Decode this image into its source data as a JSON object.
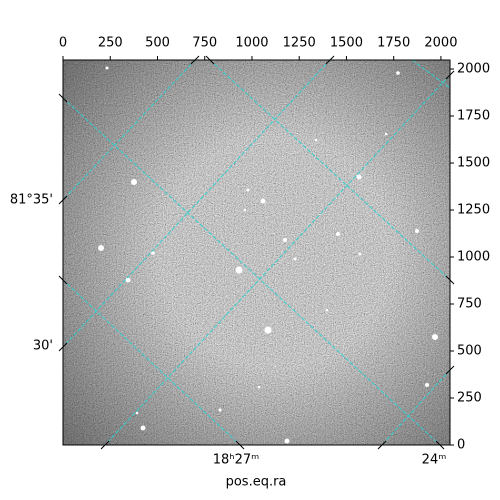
{
  "chart_data": {
    "type": "image",
    "xlabel": "pos.eq.ra",
    "xlim": [
      0,
      2048
    ],
    "xticks": [
      0,
      250,
      500,
      750,
      1000,
      1250,
      1500,
      1750,
      2000
    ],
    "ylim": [
      0,
      2048
    ],
    "yticks": [
      0,
      250,
      500,
      750,
      1000,
      1250,
      1500,
      1750,
      2000
    ],
    "grid_color": "#2fd0d0",
    "world_ticks": {
      "dec": [
        "81°35'",
        "30'"
      ],
      "ra": [
        "18ʰ27ᵐ",
        "24ᵐ"
      ]
    }
  }
}
